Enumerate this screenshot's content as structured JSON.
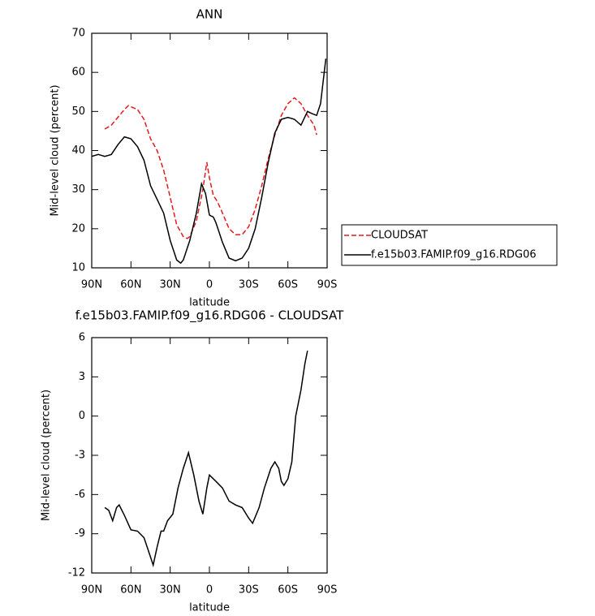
{
  "chart_data": [
    {
      "type": "line",
      "title": "ANN",
      "xlabel": "latitude",
      "ylabel": "Mid-level cloud (percent)",
      "xlim": [
        90,
        -90
      ],
      "ylim": [
        10,
        70
      ],
      "xticks": [
        {
          "value": 90,
          "label": "90N"
        },
        {
          "value": 60,
          "label": "60N"
        },
        {
          "value": 30,
          "label": "30N"
        },
        0,
        {
          "value": -30,
          "label": "30S"
        },
        {
          "value": -60,
          "label": "60S"
        },
        {
          "value": -90,
          "label": "90S"
        }
      ],
      "yticks": [
        10,
        20,
        30,
        40,
        50,
        60,
        70
      ],
      "legend": "right",
      "series": [
        {
          "name": "CLOUDSAT",
          "color": "#e41a1c",
          "line_style": "dashed",
          "x": [
            80,
            75,
            70,
            65,
            62,
            55,
            50,
            45,
            40,
            35,
            30,
            25,
            20,
            17,
            15,
            10,
            5,
            2,
            0,
            -3,
            -6,
            -10,
            -15,
            -20,
            -25,
            -30,
            -35,
            -40,
            -45,
            -50,
            -55,
            -60,
            -65,
            -70,
            -75,
            -80,
            -82
          ],
          "values": [
            45.5,
            46.5,
            48.5,
            50.5,
            51.5,
            50.5,
            48,
            43,
            40,
            35,
            28,
            21,
            18,
            17.5,
            18,
            22,
            30,
            37,
            33,
            28.5,
            27,
            24,
            20,
            18.5,
            18.5,
            20.5,
            25,
            31,
            38,
            44,
            49,
            52,
            53.5,
            52,
            49,
            46.5,
            44
          ]
        },
        {
          "name": "f.e15b03.FAMIP.f09_g16.RDG06",
          "color": "#000000",
          "line_style": "solid",
          "x": [
            90,
            85,
            80,
            75,
            70,
            65,
            60,
            55,
            50,
            45,
            40,
            35,
            30,
            25,
            22,
            20,
            15,
            10,
            6,
            3,
            0,
            -3,
            -5,
            -10,
            -15,
            -20,
            -25,
            -30,
            -35,
            -40,
            -45,
            -50,
            -55,
            -60,
            -65,
            -70,
            -75,
            -78,
            -82,
            -85,
            -89
          ],
          "values": [
            38.5,
            39,
            38.5,
            39,
            41.5,
            43.5,
            43,
            41,
            37.5,
            31,
            27.5,
            24,
            17,
            12,
            11.2,
            12,
            17,
            24,
            31.5,
            29,
            23.5,
            23,
            21.5,
            16.5,
            12.5,
            11.8,
            12.5,
            15,
            20,
            28,
            37,
            44.5,
            48,
            48.5,
            48,
            46.5,
            50,
            49.5,
            49,
            52,
            63.5
          ]
        }
      ]
    },
    {
      "type": "line",
      "title": "f.e15b03.FAMIP.f09_g16.RDG06 - CLOUDSAT",
      "xlabel": "latitude",
      "ylabel": "Mid-level cloud (percent)",
      "xlim": [
        90,
        -90
      ],
      "ylim": [
        -12,
        6
      ],
      "xticks": [
        {
          "value": 90,
          "label": "90N"
        },
        {
          "value": 60,
          "label": "60N"
        },
        {
          "value": 30,
          "label": "30N"
        },
        0,
        {
          "value": -30,
          "label": "30S"
        },
        {
          "value": -60,
          "label": "60S"
        },
        {
          "value": -90,
          "label": "90S"
        }
      ],
      "yticks": [
        -12,
        -9,
        -6,
        -3,
        0,
        3,
        6
      ],
      "series": [
        {
          "color": "#000000",
          "line_style": "solid",
          "x": [
            80,
            77,
            74,
            71,
            69,
            65,
            60,
            55,
            50,
            46,
            43,
            40,
            37,
            35,
            32,
            28,
            24,
            20,
            16,
            12,
            8,
            5,
            2,
            0,
            -5,
            -10,
            -15,
            -20,
            -25,
            -30,
            -33,
            -38,
            -42,
            -47,
            -50,
            -53,
            -55,
            -57,
            -60,
            -63,
            -66,
            -70,
            -73,
            -75
          ],
          "values": [
            -7,
            -7.2,
            -8,
            -7,
            -6.8,
            -7.6,
            -8.7,
            -8.8,
            -9.3,
            -10.5,
            -11.4,
            -10,
            -8.8,
            -8.8,
            -8,
            -7.5,
            -5.5,
            -4,
            -2.8,
            -4.5,
            -6.5,
            -7.5,
            -5.5,
            -4.5,
            -5,
            -5.5,
            -6.5,
            -6.8,
            -7,
            -7.8,
            -8.2,
            -7,
            -5.5,
            -4,
            -3.5,
            -4,
            -5,
            -5.3,
            -4.8,
            -3.5,
            0,
            2,
            4,
            5
          ]
        }
      ]
    }
  ]
}
